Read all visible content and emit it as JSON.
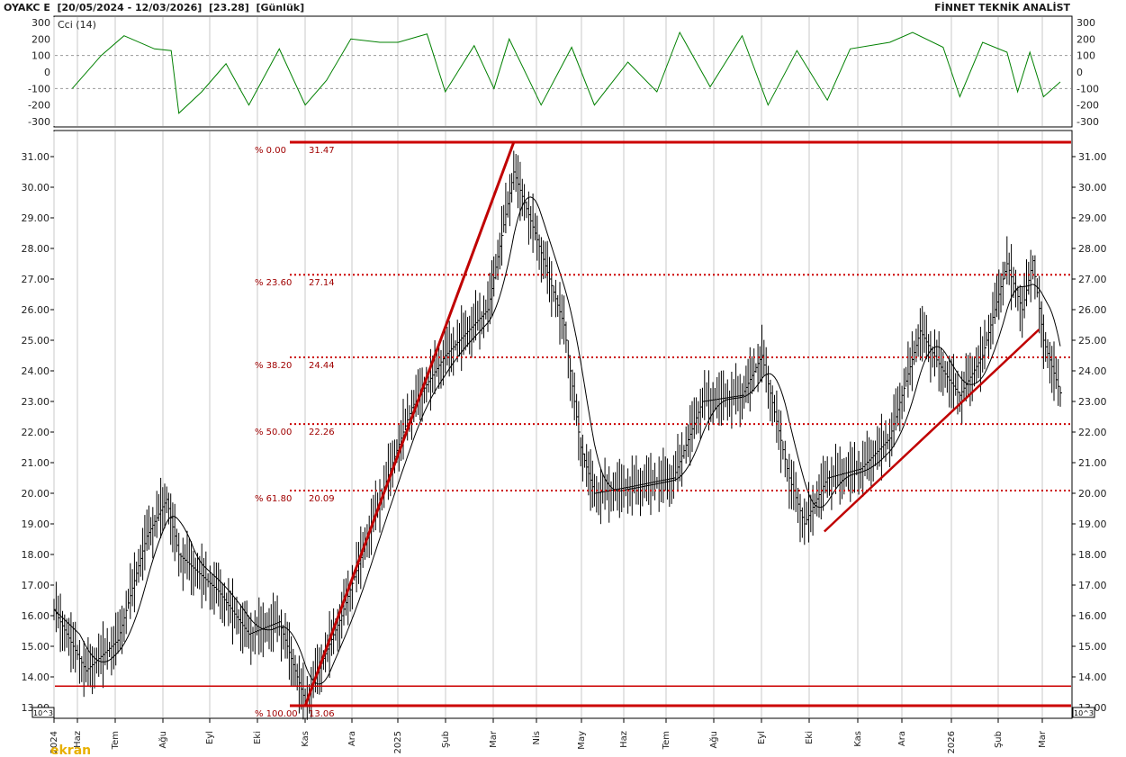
{
  "header": {
    "title_left": "OYAKC E  [20/05/2024 - 12/03/2026]  [23.28]  [Günlük]",
    "title_right": "FİNNET TEKNİK ANALİST"
  },
  "cci_panel": {
    "label": "Cci (14)",
    "ticks": [
      "300",
      "200",
      "100",
      "0",
      "-100",
      "-200",
      "-300"
    ]
  },
  "price_panel": {
    "ticks": [
      "31.00",
      "30.00",
      "29.00",
      "28.00",
      "27.00",
      "26.00",
      "25.00",
      "24.00",
      "23.00",
      "22.00",
      "21.00",
      "20.00",
      "19.00",
      "18.00",
      "17.00",
      "16.00",
      "15.00",
      "14.00",
      "13.00"
    ],
    "scale_badge": "10^3",
    "fib_levels": [
      {
        "pct": "% 0.00",
        "value": "31.47",
        "price": 31.47
      },
      {
        "pct": "% 23.60",
        "value": "27.14",
        "price": 27.14
      },
      {
        "pct": "% 38.20",
        "value": "24.44",
        "price": 24.44
      },
      {
        "pct": "% 50.00",
        "value": "22.26",
        "price": 22.26
      },
      {
        "pct": "% 61.80",
        "value": "20.09",
        "price": 20.09
      },
      {
        "pct": "% 100.00",
        "value": "13.06",
        "price": 13.06
      }
    ]
  },
  "x_labels": [
    "2024",
    "Haz",
    "Tem",
    "Ağu",
    "Eyl",
    "Eki",
    "Kas",
    "Ara",
    "2025",
    "Şub",
    "Mar",
    "Nis",
    "May",
    "Haz",
    "Tem",
    "Ağu",
    "Eyl",
    "Eki",
    "Kas",
    "Ara",
    "2026",
    "Şub",
    "Mar"
  ],
  "watermark": "ekran",
  "colors": {
    "price": "#000000",
    "cci": "#008000",
    "fib_line": "#cc0000",
    "trend": "#c00000",
    "grid": "#c8c8c8"
  },
  "chart_data": {
    "type": "line",
    "price_axis": {
      "ylim": [
        13.0,
        31.5
      ]
    },
    "cci_axis": {
      "ylim": [
        -300,
        300
      ]
    },
    "price_points": [
      {
        "date": "2024-05-20",
        "close": 16.2
      },
      {
        "date": "2024-06-10",
        "close": 14.2
      },
      {
        "date": "2024-07-01",
        "close": 15.2
      },
      {
        "date": "2024-07-20",
        "close": 18.6
      },
      {
        "date": "2024-08-02",
        "close": 19.8
      },
      {
        "date": "2024-08-10",
        "close": 18.0
      },
      {
        "date": "2024-09-05",
        "close": 16.8
      },
      {
        "date": "2024-09-25",
        "close": 15.4
      },
      {
        "date": "2024-10-15",
        "close": 15.8
      },
      {
        "date": "2024-11-01",
        "close": 13.2
      },
      {
        "date": "2024-11-25",
        "close": 16.0
      },
      {
        "date": "2024-12-20",
        "close": 19.8
      },
      {
        "date": "2025-01-10",
        "close": 22.8
      },
      {
        "date": "2025-02-01",
        "close": 24.5
      },
      {
        "date": "2025-03-01",
        "close": 26.0
      },
      {
        "date": "2025-03-18",
        "close": 30.5
      },
      {
        "date": "2025-04-01",
        "close": 28.5
      },
      {
        "date": "2025-04-20",
        "close": 25.5
      },
      {
        "date": "2025-05-01",
        "close": 21.5
      },
      {
        "date": "2025-05-10",
        "close": 20.0
      },
      {
        "date": "2025-06-01",
        "close": 20.2
      },
      {
        "date": "2025-07-01",
        "close": 20.5
      },
      {
        "date": "2025-07-20",
        "close": 23.0
      },
      {
        "date": "2025-08-15",
        "close": 23.2
      },
      {
        "date": "2025-08-28",
        "close": 24.5
      },
      {
        "date": "2025-09-15",
        "close": 20.5
      },
      {
        "date": "2025-09-25",
        "close": 19.0
      },
      {
        "date": "2025-10-10",
        "close": 20.5
      },
      {
        "date": "2025-11-01",
        "close": 20.8
      },
      {
        "date": "2025-11-20",
        "close": 21.8
      },
      {
        "date": "2025-12-10",
        "close": 25.3
      },
      {
        "date": "2025-12-25",
        "close": 24.0
      },
      {
        "date": "2026-01-05",
        "close": 23.2
      },
      {
        "date": "2026-01-20",
        "close": 24.5
      },
      {
        "date": "2026-02-05",
        "close": 27.5
      },
      {
        "date": "2026-02-15",
        "close": 26.0
      },
      {
        "date": "2026-02-22",
        "close": 27.6
      },
      {
        "date": "2026-03-01",
        "close": 25.0
      },
      {
        "date": "2026-03-12",
        "close": 23.28
      }
    ],
    "cci_points": [
      {
        "date": "2024-06-01",
        "value": -100
      },
      {
        "date": "2024-06-20",
        "value": 100
      },
      {
        "date": "2024-07-05",
        "value": 220
      },
      {
        "date": "2024-07-25",
        "value": 140
      },
      {
        "date": "2024-08-05",
        "value": 130
      },
      {
        "date": "2024-08-10",
        "value": -250
      },
      {
        "date": "2024-08-25",
        "value": -120
      },
      {
        "date": "2024-09-10",
        "value": 50
      },
      {
        "date": "2024-09-25",
        "value": -200
      },
      {
        "date": "2024-10-15",
        "value": 140
      },
      {
        "date": "2024-11-01",
        "value": -200
      },
      {
        "date": "2024-11-15",
        "value": -50
      },
      {
        "date": "2024-12-01",
        "value": 200
      },
      {
        "date": "2024-12-20",
        "value": 180
      },
      {
        "date": "2025-01-01",
        "value": 180
      },
      {
        "date": "2025-01-20",
        "value": 230
      },
      {
        "date": "2025-02-01",
        "value": -120
      },
      {
        "date": "2025-02-20",
        "value": 160
      },
      {
        "date": "2025-03-05",
        "value": -100
      },
      {
        "date": "2025-03-15",
        "value": 200
      },
      {
        "date": "2025-04-05",
        "value": -200
      },
      {
        "date": "2025-04-25",
        "value": 150
      },
      {
        "date": "2025-05-10",
        "value": -200
      },
      {
        "date": "2025-06-01",
        "value": 60
      },
      {
        "date": "2025-06-20",
        "value": -120
      },
      {
        "date": "2025-07-05",
        "value": 240
      },
      {
        "date": "2025-07-25",
        "value": -90
      },
      {
        "date": "2025-08-15",
        "value": 220
      },
      {
        "date": "2025-09-01",
        "value": -200
      },
      {
        "date": "2025-09-20",
        "value": 130
      },
      {
        "date": "2025-10-10",
        "value": -170
      },
      {
        "date": "2025-10-25",
        "value": 140
      },
      {
        "date": "2025-11-20",
        "value": 180
      },
      {
        "date": "2025-12-05",
        "value": 240
      },
      {
        "date": "2025-12-25",
        "value": 150
      },
      {
        "date": "2026-01-05",
        "value": -150
      },
      {
        "date": "2026-01-20",
        "value": 180
      },
      {
        "date": "2026-02-05",
        "value": 120
      },
      {
        "date": "2026-02-12",
        "value": -120
      },
      {
        "date": "2026-02-20",
        "value": 120
      },
      {
        "date": "2026-03-01",
        "value": -150
      },
      {
        "date": "2026-03-12",
        "value": -60
      }
    ]
  }
}
